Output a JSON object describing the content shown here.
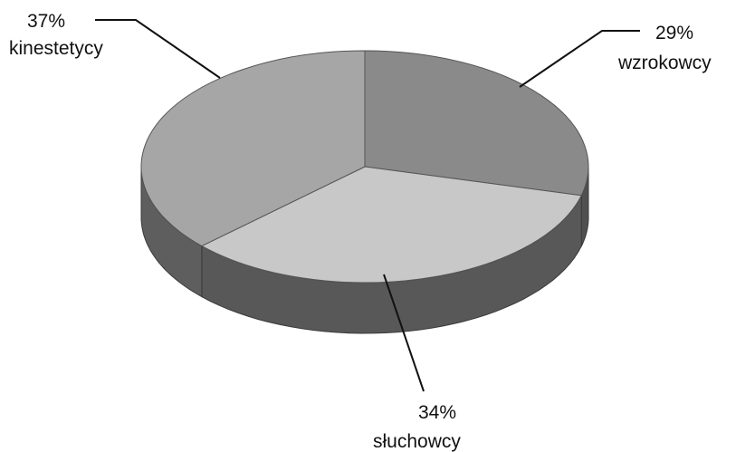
{
  "chart_data": {
    "type": "pie",
    "style": "3d",
    "slices": [
      {
        "label": "wzrokowcy",
        "value": 29,
        "value_label": "29%",
        "color": "#8a8a8a"
      },
      {
        "label": "słuchowcy",
        "value": 34,
        "value_label": "34%",
        "color": "#c8c8c8"
      },
      {
        "label": "kinestetycy",
        "value": 37,
        "value_label": "37%",
        "color": "#a6a6a6"
      }
    ],
    "title": "",
    "legend": "none"
  }
}
